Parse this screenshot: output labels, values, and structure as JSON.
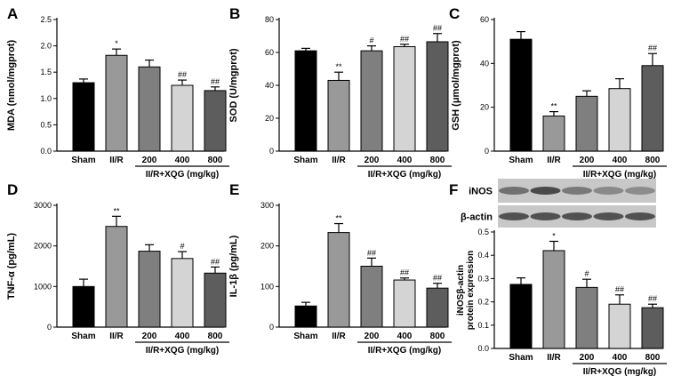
{
  "chart_data": [
    {
      "type": "bar",
      "panel": "A",
      "ylabel": "MDA (nmol/mgprot)",
      "categories": [
        "Sham",
        "II/R",
        "200",
        "400",
        "800"
      ],
      "group_label": "II/R+XQG (mg/kg)",
      "values": [
        1.3,
        1.82,
        1.6,
        1.25,
        1.15
      ],
      "errors": [
        0.07,
        0.12,
        0.13,
        0.1,
        0.07
      ],
      "sig": [
        "",
        "*",
        "",
        "##",
        "##"
      ],
      "ylim": [
        0,
        2.5
      ],
      "yticks": [
        "0.0",
        "0.5",
        "1.0",
        "1.5",
        "2.0",
        "2.5"
      ],
      "colors": [
        "#000000",
        "#999999",
        "#7f7f7f",
        "#d4d4d4",
        "#5d5d5d"
      ]
    },
    {
      "type": "bar",
      "panel": "B",
      "ylabel": "SOD (U/mgprot)",
      "categories": [
        "Sham",
        "II/R",
        "200",
        "400",
        "800"
      ],
      "group_label": "II/R+XQG (mg/kg)",
      "values": [
        61,
        43,
        61,
        63.5,
        66.5
      ],
      "errors": [
        1.5,
        5,
        3,
        1.5,
        5
      ],
      "sig": [
        "",
        "**",
        "#",
        "##",
        "##"
      ],
      "ylim": [
        0,
        80
      ],
      "yticks": [
        "0",
        "20",
        "40",
        "60",
        "80"
      ],
      "colors": [
        "#000000",
        "#999999",
        "#7f7f7f",
        "#d4d4d4",
        "#5d5d5d"
      ]
    },
    {
      "type": "bar",
      "panel": "C",
      "ylabel": "GSH (μmol/mgprot)",
      "categories": [
        "Sham",
        "II/R",
        "200",
        "400",
        "800"
      ],
      "group_label": "II/R+XQG (mg/kg)",
      "values": [
        51,
        16,
        25,
        28.5,
        39
      ],
      "errors": [
        3.5,
        2,
        2.5,
        4.5,
        5.5
      ],
      "sig": [
        "",
        "**",
        "",
        "",
        "##"
      ],
      "ylim": [
        0,
        60
      ],
      "yticks": [
        "0",
        "20",
        "40",
        "60"
      ],
      "colors": [
        "#000000",
        "#999999",
        "#7f7f7f",
        "#d4d4d4",
        "#5d5d5d"
      ]
    },
    {
      "type": "bar",
      "panel": "D",
      "ylabel": "TNF-α (pg/mL)",
      "categories": [
        "Sham",
        "II/R",
        "200",
        "400",
        "800"
      ],
      "group_label": "II/R+XQG (mg/kg)",
      "values": [
        1000,
        2480,
        1870,
        1690,
        1330
      ],
      "errors": [
        180,
        250,
        160,
        170,
        150
      ],
      "sig": [
        "",
        "**",
        "",
        "#",
        "##"
      ],
      "ylim": [
        0,
        3000
      ],
      "yticks": [
        "0",
        "1000",
        "2000",
        "3000"
      ],
      "colors": [
        "#000000",
        "#999999",
        "#7f7f7f",
        "#d4d4d4",
        "#5d5d5d"
      ]
    },
    {
      "type": "bar",
      "panel": "E",
      "ylabel": "IL-1β (pg/mL)",
      "categories": [
        "Sham",
        "II/R",
        "200",
        "400",
        "800"
      ],
      "group_label": "II/R+XQG (mg/kg)",
      "values": [
        52,
        233,
        150,
        116,
        96
      ],
      "errors": [
        9,
        22,
        20,
        5,
        12
      ],
      "sig": [
        "",
        "**",
        "##",
        "##",
        "##"
      ],
      "ylim": [
        0,
        300
      ],
      "yticks": [
        "0",
        "100",
        "200",
        "300"
      ],
      "colors": [
        "#000000",
        "#999999",
        "#7f7f7f",
        "#d4d4d4",
        "#5d5d5d"
      ]
    },
    {
      "type": "bar",
      "panel": "F",
      "ylabel": "iNOS/β-actin protein expression",
      "ylabel_lines": [
        "iNOSβ-actin",
        "protein expression"
      ],
      "categories": [
        "Sham",
        "II/R",
        "200",
        "400",
        "800"
      ],
      "group_label": "II/R+XQG (mg/kg)",
      "values": [
        0.275,
        0.42,
        0.262,
        0.19,
        0.175
      ],
      "errors": [
        0.028,
        0.04,
        0.035,
        0.04,
        0.015
      ],
      "sig": [
        "",
        "*",
        "#",
        "##",
        "##"
      ],
      "ylim": [
        0,
        0.5
      ],
      "yticks": [
        "0.0",
        "0.1",
        "0.2",
        "0.3",
        "0.4",
        "0.5"
      ],
      "colors": [
        "#000000",
        "#999999",
        "#7f7f7f",
        "#d4d4d4",
        "#5d5d5d"
      ],
      "blot_labels": [
        "iNOS",
        "β-actin"
      ]
    }
  ]
}
